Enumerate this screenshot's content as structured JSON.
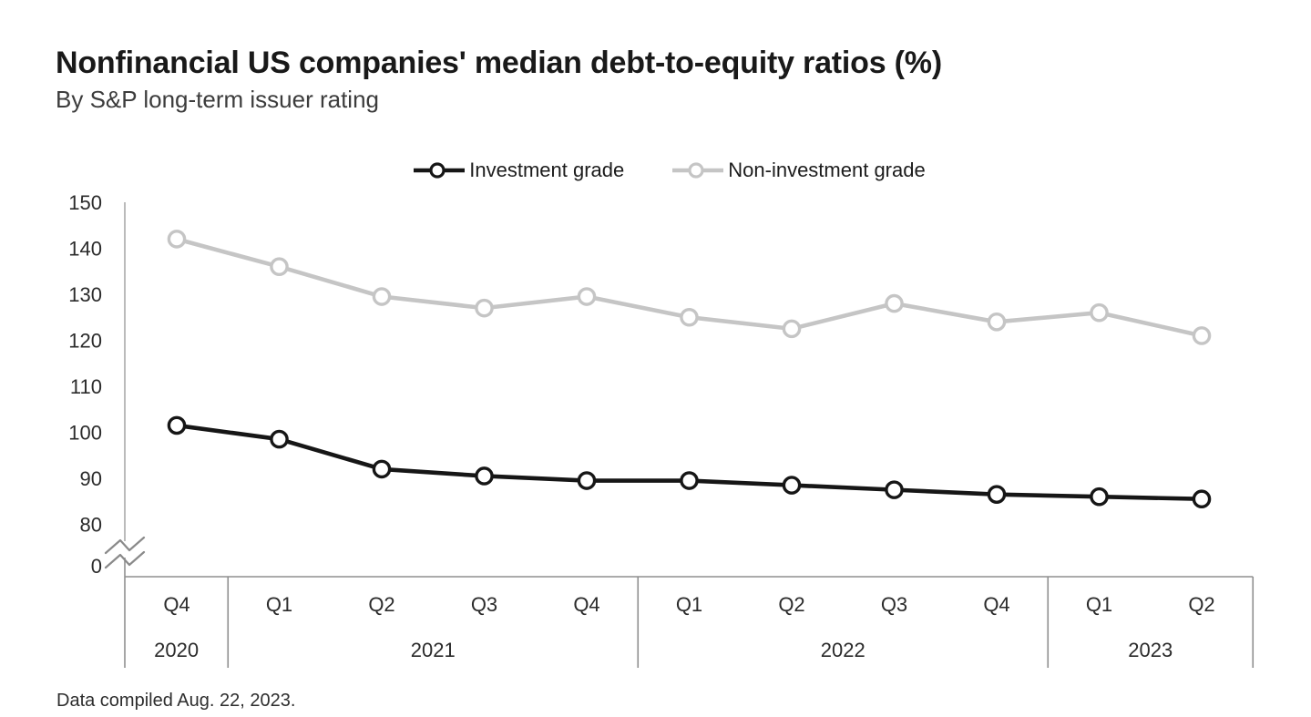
{
  "chart_data": {
    "type": "line",
    "title": "Nonfinancial US companies' median debt-to-equity ratios (%)",
    "subtitle": "By S&P long-term issuer rating",
    "footnote": "Data compiled Aug. 22, 2023.",
    "xlabel": "",
    "ylabel": "",
    "ylim": [
      0,
      150
    ],
    "yticks": [
      0,
      80,
      90,
      100,
      110,
      120,
      130,
      140,
      150
    ],
    "axis_break_between": [
      0,
      80
    ],
    "grid": false,
    "legend_position": "top-center",
    "x_groups": [
      {
        "year": "2020",
        "quarters": [
          "Q4"
        ]
      },
      {
        "year": "2021",
        "quarters": [
          "Q1",
          "Q2",
          "Q3",
          "Q4"
        ]
      },
      {
        "year": "2022",
        "quarters": [
          "Q1",
          "Q2",
          "Q3",
          "Q4"
        ]
      },
      {
        "year": "2023",
        "quarters": [
          "Q1",
          "Q2"
        ]
      }
    ],
    "categories": [
      "Q4 2020",
      "Q1 2021",
      "Q2 2021",
      "Q3 2021",
      "Q4 2021",
      "Q1 2022",
      "Q2 2022",
      "Q3 2022",
      "Q4 2022",
      "Q1 2023",
      "Q2 2023"
    ],
    "series": [
      {
        "name": "Investment grade",
        "color": "#161616",
        "values": [
          101.5,
          98.5,
          92,
          90.5,
          89.5,
          89.5,
          88.5,
          87.5,
          86.5,
          86,
          85.5
        ]
      },
      {
        "name": "Non-investment grade",
        "color": "#c5c5c5",
        "values": [
          142,
          136,
          129.5,
          127,
          129.5,
          125,
          122.5,
          128,
          124,
          126,
          121
        ]
      }
    ]
  },
  "colors": {
    "background": "#ffffff",
    "title_text": "#191919",
    "subtitle_text": "#3c3c3c",
    "tick_text": "#2b2b2b",
    "y_axis_line": "#aaaaaa",
    "table_line": "#8f8f8f",
    "break_glyph": "#8a8a8a"
  }
}
